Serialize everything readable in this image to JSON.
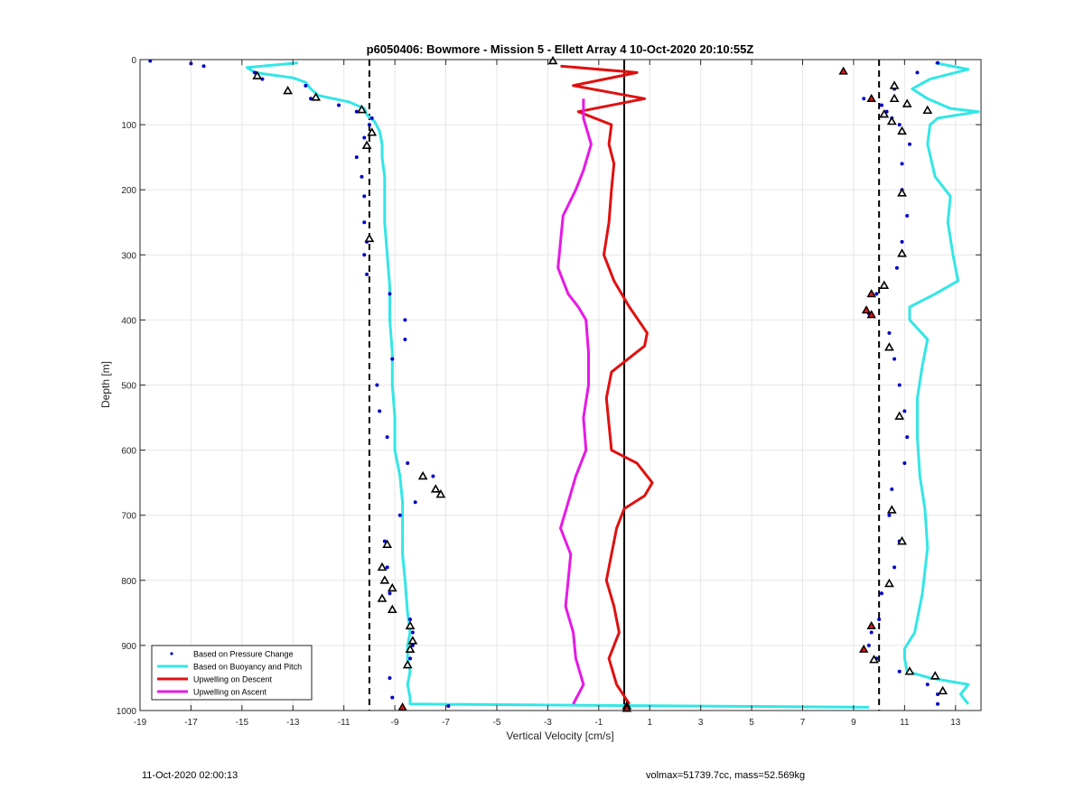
{
  "chart_data": {
    "type": "scatter",
    "title": "p6050406: Bowmore - Mission 5 - Ellett Array 4 10-Oct-2020 20:10:55Z",
    "xlabel": "Vertical Velocity [cm/s]",
    "ylabel": "Depth [m]",
    "xlim": [
      -19,
      14
    ],
    "ylim": [
      1000,
      0
    ],
    "y_reversed": true,
    "grid": true,
    "xticks": [
      -19,
      -17,
      -15,
      -13,
      -11,
      -9,
      -7,
      -5,
      -3,
      -1,
      1,
      3,
      5,
      7,
      9,
      11,
      13
    ],
    "yticks": [
      0,
      100,
      200,
      300,
      400,
      500,
      600,
      700,
      800,
      900,
      1000
    ],
    "legend_position": "bottom-left",
    "legend": [
      {
        "label": "Based on Pressure Change",
        "style": "dots",
        "color": "#0000c8"
      },
      {
        "label": "Based on Buoyancy and Pitch",
        "style": "line",
        "color": "#33e6e6"
      },
      {
        "label": "Upwelling on Descent",
        "style": "line",
        "color": "#e01010"
      },
      {
        "label": "Upwelling on Ascent",
        "style": "line",
        "color": "#e619e6"
      }
    ],
    "reference_lines": [
      {
        "x": -10,
        "style": "dashed",
        "color": "#000000"
      },
      {
        "x": 10,
        "style": "dashed",
        "color": "#000000"
      },
      {
        "x": 0,
        "style": "solid",
        "color": "#000000"
      }
    ],
    "series": [
      {
        "name": "Based on Buoyancy and Pitch",
        "kind": "descent",
        "color": "#33e6e6",
        "depth": [
          5,
          12,
          20,
          28,
          35,
          45,
          55,
          65,
          75,
          85,
          95,
          110,
          130,
          150,
          180,
          200,
          250,
          300,
          350,
          400,
          450,
          500,
          550,
          600,
          640,
          680,
          720,
          760,
          800,
          850,
          880,
          900,
          920,
          940,
          960,
          980,
          990,
          995
        ],
        "x": [
          -12.8,
          -14.8,
          -14.5,
          -13,
          -12.5,
          -12.3,
          -12,
          -10.8,
          -10.2,
          -10.1,
          -9.8,
          -9.6,
          -9.5,
          -9.5,
          -9.4,
          -9.4,
          -9.4,
          -9.3,
          -9.2,
          -9.2,
          -9.1,
          -9.1,
          -9,
          -9,
          -8.8,
          -8.7,
          -8.7,
          -8.7,
          -8.6,
          -8.5,
          -8.4,
          -8.5,
          -8.5,
          -8.4,
          -8.5,
          -8.4,
          -8.4,
          9.6
        ]
      },
      {
        "name": "Based on Buoyancy and Pitch",
        "kind": "ascent",
        "color": "#33e6e6",
        "depth": [
          5,
          15,
          30,
          45,
          60,
          75,
          80,
          90,
          100,
          130,
          180,
          210,
          250,
          300,
          340,
          360,
          380,
          400,
          430,
          470,
          520,
          580,
          640,
          690,
          750,
          820,
          880,
          905,
          920,
          940,
          950,
          960,
          975,
          990
        ],
        "x": [
          12.2,
          13.5,
          12,
          11.3,
          11.9,
          12.8,
          13.9,
          12.3,
          12,
          11.9,
          12.2,
          12.8,
          12.7,
          12.9,
          13.1,
          12.2,
          11.2,
          11.2,
          11.9,
          11.7,
          11.5,
          11.5,
          11.6,
          11.8,
          11.9,
          11.7,
          11.4,
          11,
          11,
          11.1,
          12,
          13.5,
          13.2,
          13.5
        ]
      },
      {
        "name": "Upwelling on Descent",
        "color": "#e01010",
        "depth": [
          10,
          20,
          40,
          60,
          80,
          100,
          130,
          160,
          200,
          250,
          300,
          340,
          380,
          420,
          440,
          480,
          520,
          560,
          600,
          620,
          650,
          670,
          690,
          720,
          760,
          800,
          840,
          880,
          920,
          960,
          990
        ],
        "x": [
          -2.5,
          0.5,
          -2,
          0.8,
          -1.8,
          -0.5,
          -0.6,
          -0.4,
          -0.5,
          -0.6,
          -0.8,
          -0.4,
          0.2,
          0.9,
          0.8,
          -0.5,
          -0.7,
          -0.6,
          -0.5,
          0.5,
          1.1,
          0.8,
          0,
          -0.3,
          -0.5,
          -0.7,
          -0.4,
          -0.2,
          -0.6,
          -0.3,
          0.2
        ]
      },
      {
        "name": "Upwelling on Ascent",
        "color": "#e619e6",
        "depth": [
          60,
          90,
          130,
          170,
          200,
          240,
          280,
          320,
          360,
          380,
          400,
          450,
          500,
          550,
          600,
          640,
          680,
          720,
          760,
          800,
          840,
          880,
          920,
          960,
          990
        ],
        "x": [
          -1.6,
          -1.6,
          -1.3,
          -1.6,
          -1.9,
          -2.4,
          -2.5,
          -2.6,
          -2.2,
          -1.8,
          -1.5,
          -1.4,
          -1.4,
          -1.6,
          -1.5,
          -1.9,
          -2.2,
          -2.5,
          -2.1,
          -2.2,
          -2.3,
          -2,
          -1.9,
          -1.6,
          -2
        ]
      },
      {
        "name": "Based on Pressure Change",
        "kind": "descent",
        "color": "#0000c8",
        "depth": [
          2,
          6,
          10,
          20,
          30,
          40,
          50,
          60,
          70,
          80,
          90,
          100,
          120,
          150,
          180,
          210,
          250,
          280,
          300,
          330,
          360,
          400,
          430,
          460,
          500,
          540,
          580,
          620,
          640,
          660,
          680,
          700,
          740,
          780,
          820,
          860,
          880,
          900,
          920,
          950,
          980,
          993
        ],
        "x": [
          -18.6,
          -17,
          -16.5,
          -14.5,
          -14.2,
          -12.5,
          -13.2,
          -12.3,
          -11.2,
          -10.5,
          -9.9,
          -10,
          -10.2,
          -10.5,
          -10.3,
          -10.2,
          -10.2,
          -10.1,
          -10.2,
          -10.1,
          -9.2,
          -8.6,
          -8.6,
          -9.1,
          -9.7,
          -9.6,
          -9.3,
          -8.5,
          -7.5,
          -7.4,
          -8.2,
          -8.8,
          -9.4,
          -9.3,
          -9.2,
          -8.4,
          -8.3,
          -8.3,
          -8.4,
          -9.2,
          -9.1,
          -6.9
        ]
      },
      {
        "name": "Based on Pressure Change",
        "kind": "ascent",
        "color": "#0000c8",
        "depth": [
          5,
          20,
          45,
          60,
          70,
          80,
          90,
          100,
          130,
          160,
          200,
          240,
          280,
          320,
          360,
          390,
          420,
          460,
          500,
          540,
          580,
          620,
          660,
          700,
          740,
          780,
          820,
          860,
          880,
          900,
          920,
          940,
          960,
          975,
          990
        ],
        "x": [
          12.3,
          11.5,
          10.6,
          9.4,
          10.1,
          10.3,
          10.5,
          10.8,
          11.2,
          10.9,
          10.9,
          11.1,
          10.9,
          10.7,
          9.9,
          9.6,
          10.4,
          10.6,
          10.8,
          11,
          11.1,
          11,
          10.5,
          10.4,
          10.8,
          10.6,
          10.1,
          10,
          9.7,
          9.6,
          9.9,
          10.8,
          11.9,
          12.3,
          12.3
        ]
      }
    ],
    "markers": {
      "black_edged": [
        {
          "x": -14.4,
          "depth": 25
        },
        {
          "x": -13.2,
          "depth": 48
        },
        {
          "x": -12.1,
          "depth": 58
        },
        {
          "x": -10.3,
          "depth": 77
        },
        {
          "x": -9.9,
          "depth": 112
        },
        {
          "x": -10.1,
          "depth": 132
        },
        {
          "x": -10.0,
          "depth": 275
        },
        {
          "x": -7.9,
          "depth": 640
        },
        {
          "x": -7.4,
          "depth": 660
        },
        {
          "x": -7.2,
          "depth": 668
        },
        {
          "x": -9.3,
          "depth": 745
        },
        {
          "x": -9.5,
          "depth": 780
        },
        {
          "x": -9.4,
          "depth": 800
        },
        {
          "x": -9.1,
          "depth": 812
        },
        {
          "x": -9.5,
          "depth": 828
        },
        {
          "x": -9.1,
          "depth": 845
        },
        {
          "x": -8.4,
          "depth": 870
        },
        {
          "x": -8.3,
          "depth": 893
        },
        {
          "x": -8.4,
          "depth": 906
        },
        {
          "x": -8.5,
          "depth": 930
        },
        {
          "x": -2.8,
          "depth": 2
        },
        {
          "x": 0.1,
          "depth": 993
        },
        {
          "x": 10.6,
          "depth": 40
        },
        {
          "x": 10.6,
          "depth": 60
        },
        {
          "x": 11.1,
          "depth": 68
        },
        {
          "x": 11.9,
          "depth": 78
        },
        {
          "x": 10.2,
          "depth": 84
        },
        {
          "x": 10.5,
          "depth": 95
        },
        {
          "x": 10.9,
          "depth": 110
        },
        {
          "x": 10.9,
          "depth": 205
        },
        {
          "x": 10.9,
          "depth": 298
        },
        {
          "x": 10.2,
          "depth": 347
        },
        {
          "x": 10.4,
          "depth": 442
        },
        {
          "x": 10.8,
          "depth": 548
        },
        {
          "x": 10.5,
          "depth": 692
        },
        {
          "x": 10.9,
          "depth": 740
        },
        {
          "x": 10.4,
          "depth": 805
        },
        {
          "x": 9.8,
          "depth": 922
        },
        {
          "x": 11.2,
          "depth": 940
        },
        {
          "x": 12.2,
          "depth": 947
        },
        {
          "x": 12.5,
          "depth": 970
        }
      ],
      "red_filled": [
        {
          "x": 8.6,
          "depth": 18
        },
        {
          "x": 9.7,
          "depth": 60
        },
        {
          "x": 9.7,
          "depth": 360
        },
        {
          "x": 9.5,
          "depth": 385
        },
        {
          "x": 9.7,
          "depth": 392
        },
        {
          "x": 9.7,
          "depth": 870
        },
        {
          "x": 9.4,
          "depth": 906
        },
        {
          "x": -8.7,
          "depth": 995
        },
        {
          "x": 0.1,
          "depth": 997
        }
      ]
    }
  },
  "footer": {
    "left": "11-Oct-2020 02:00:13",
    "right": "volmax=51739.7cc, mass=52.569kg"
  }
}
